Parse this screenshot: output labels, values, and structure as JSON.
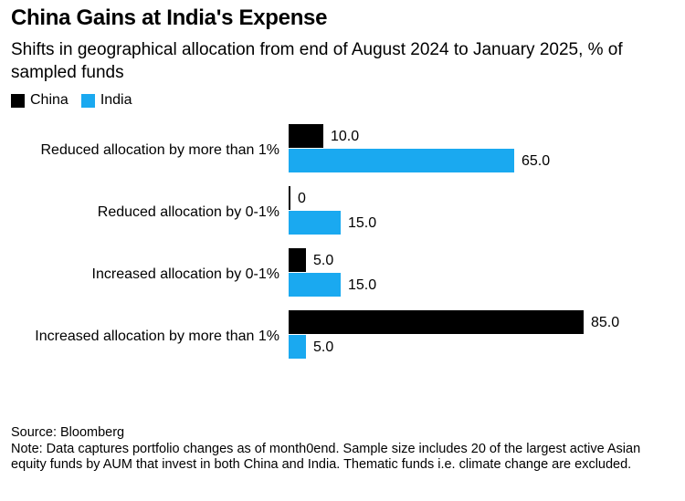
{
  "title": "China Gains at India's Expense",
  "subtitle": "Shifts in geographical allocation from end of August 2024 to January 2025, % of sampled funds",
  "colors": {
    "China": "#000000",
    "India": "#1aa9f0"
  },
  "chart_data": {
    "type": "bar",
    "orientation": "horizontal",
    "categories": [
      "Reduced allocation by more than 1%",
      "Reduced allocation by 0-1%",
      "Increased allocation by 0-1%",
      "Increased allocation by more than 1%"
    ],
    "series": [
      {
        "name": "China",
        "values": [
          10.0,
          0,
          5.0,
          85.0
        ],
        "labels": [
          "10.0",
          "0",
          "5.0",
          "85.0"
        ]
      },
      {
        "name": "India",
        "values": [
          65.0,
          15.0,
          15.0,
          5.0
        ],
        "labels": [
          "65.0",
          "15.0",
          "15.0",
          "5.0"
        ]
      }
    ],
    "legend": "top-left",
    "grid": false,
    "xlim": [
      0,
      85
    ]
  },
  "footer": {
    "source": "Source: Bloomberg",
    "note": "Note: Data captures portfolio changes as of month0end. Sample size includes 20 of the largest active Asian equity funds by AUM that invest in both China and India. Thematic funds i.e. climate change are excluded."
  }
}
